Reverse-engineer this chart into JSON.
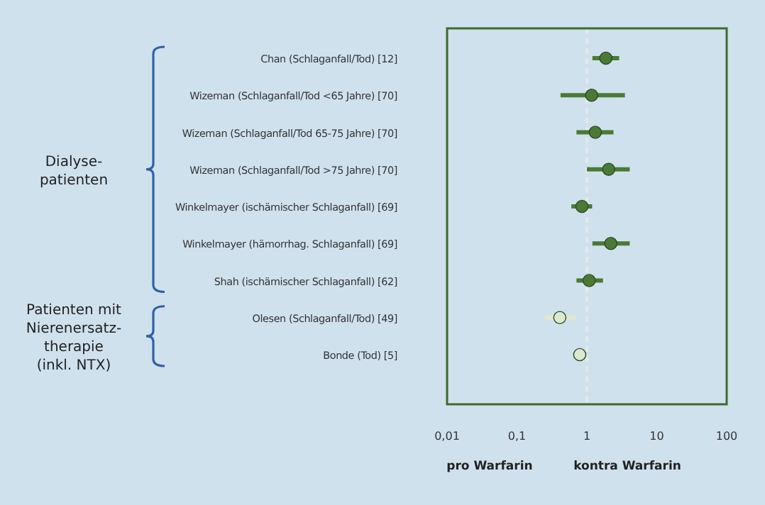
{
  "chart_data": {
    "type": "scatter",
    "orientation": "horizontal",
    "log": "x",
    "categories": [
      "Chan (Schlaganfall/Tod) [12]",
      "Wizeman (Schlaganfall/Tod <65 Jahre) [70]",
      "Wizeman (Schlaganfall/Tod 65-75 Jahre) [70]",
      "Wizeman (Schlaganfall/Tod >75 Jahre) [70]",
      "Winkelmayer (ischämischer Schlaganfall) [69]",
      "Winkelmayer (hämorrhag. Schlaganfall) [69]",
      "Shah (ischämischer Schlaganfall) [62]",
      "Olesen (Schlaganfall/Tod) [49]",
      "Bonde (Tod) [5]"
    ],
    "values": [
      1.87,
      1.17,
      1.32,
      2.05,
      0.85,
      2.2,
      1.08,
      0.41,
      0.79
    ],
    "errors": [
      [
        1.2,
        2.9
      ],
      [
        0.42,
        3.5
      ],
      [
        0.71,
        2.4
      ],
      [
        1.0,
        4.1
      ],
      [
        0.6,
        1.19
      ],
      [
        1.2,
        4.1
      ],
      [
        0.71,
        1.7
      ],
      [
        0.25,
        0.7
      ],
      null
    ],
    "colors": [
      "#4a7a36",
      "#4a7a36",
      "#4a7a36",
      "#4a7a36",
      "#4a7a36",
      "#4a7a36",
      "#4a7a36",
      "#dde9cf",
      "#dde9cf"
    ],
    "xlim": [
      0.01,
      100
    ],
    "xticks": [
      {
        "value": 0.01,
        "label": "0,01"
      },
      {
        "value": 0.1,
        "label": "0,1"
      },
      1,
      10,
      100
    ],
    "ref_lines": [
      {
        "axis": "x",
        "value": 1,
        "color": "#e4e8ea",
        "line_style": "dashed"
      }
    ],
    "marker": "circle",
    "annotations": [
      "Dialyse-\npatienten",
      "Patienten mit\nNierenersatz-\ntherapie\n(inkl. NTX)",
      "pro Warfarin",
      "kontra Warfarin"
    ]
  }
}
